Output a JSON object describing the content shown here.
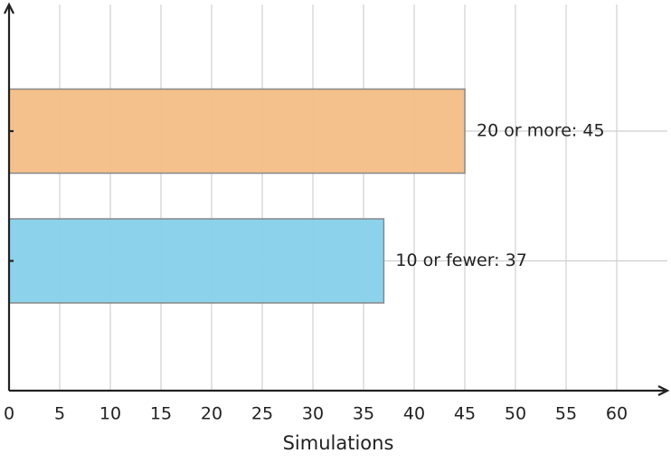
{
  "chart_data": {
    "type": "barh",
    "xlabel": "Simulations",
    "values": [
      37,
      45
    ],
    "value_labels": [
      "10 or fewer: 37",
      "20 or more: 45"
    ],
    "colors": [
      "#85d0e9",
      "#f3bd85"
    ],
    "xlim": [
      0,
      65
    ],
    "xticks": [
      0,
      5,
      10,
      15,
      20,
      25,
      30,
      35,
      40,
      45,
      50,
      55,
      60
    ],
    "grid": true
  }
}
